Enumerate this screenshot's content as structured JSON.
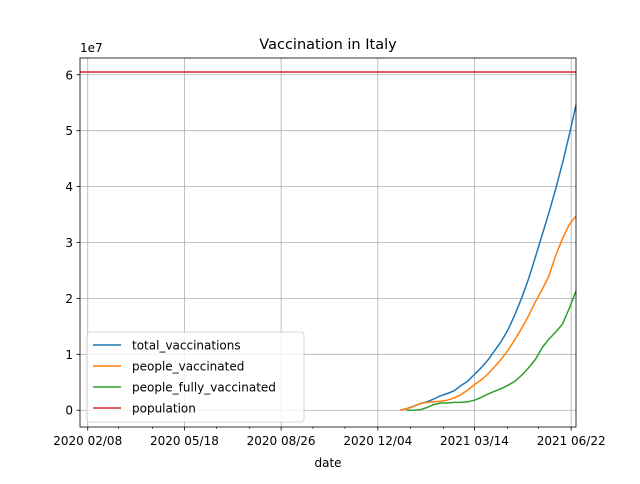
{
  "chart_data": {
    "type": "line",
    "title": "Vaccination in Italy",
    "xlabel": "date",
    "ylabel": "",
    "y_offset_label": "1e7",
    "y_multiplier": 10000000,
    "xlim": [
      "2020-01-31",
      "2021-06-27"
    ],
    "ylim": [
      -0.3,
      6.3
    ],
    "x_ticks": [
      {
        "date": "2020-02-08",
        "label": "2020 02/08"
      },
      {
        "date": "2020-05-18",
        "label": "2020 05/18"
      },
      {
        "date": "2020-08-26",
        "label": "2020 08/26"
      },
      {
        "date": "2020-12-04",
        "label": "2020 12/04"
      },
      {
        "date": "2021-03-14",
        "label": "2021 03/14"
      },
      {
        "date": "2021-06-22",
        "label": "2021 06/22"
      }
    ],
    "x_minor_ticks": [
      "2020-03-11",
      "2020-04-15",
      "2020-06-20",
      "2020-07-24",
      "2020-09-28",
      "2020-10-31",
      "2021-01-07",
      "2021-02-10",
      "2021-04-17",
      "2021-05-19"
    ],
    "y_ticks": [
      0,
      1,
      2,
      3,
      4,
      5,
      6
    ],
    "y_tick_labels": [
      "0",
      "1",
      "2",
      "3",
      "4",
      "5",
      "6"
    ],
    "grid": true,
    "legend_position": "lower-left",
    "series": [
      {
        "name": "total_vaccinations",
        "color": "#1f77b4",
        "x": [
          "2020-12-27",
          "2021-01-03",
          "2021-01-10",
          "2021-01-17",
          "2021-01-24",
          "2021-01-31",
          "2021-02-07",
          "2021-02-14",
          "2021-02-21",
          "2021-02-28",
          "2021-03-07",
          "2021-03-14",
          "2021-03-21",
          "2021-03-28",
          "2021-04-04",
          "2021-04-11",
          "2021-04-18",
          "2021-04-25",
          "2021-05-02",
          "2021-05-09",
          "2021-05-16",
          "2021-05-23",
          "2021-05-30",
          "2021-06-06",
          "2021-06-13",
          "2021-06-20",
          "2021-06-27"
        ],
        "values": [
          0.0,
          0.03,
          0.07,
          0.12,
          0.15,
          0.2,
          0.26,
          0.3,
          0.35,
          0.44,
          0.52,
          0.64,
          0.76,
          0.9,
          1.07,
          1.24,
          1.45,
          1.72,
          2.02,
          2.35,
          2.74,
          3.14,
          3.53,
          3.96,
          4.42,
          4.92,
          5.46
        ]
      },
      {
        "name": "people_vaccinated",
        "color": "#ff7f0e",
        "x": [
          "2020-12-27",
          "2021-01-03",
          "2021-01-10",
          "2021-01-17",
          "2021-01-24",
          "2021-01-31",
          "2021-02-07",
          "2021-02-14",
          "2021-02-21",
          "2021-02-28",
          "2021-03-07",
          "2021-03-14",
          "2021-03-21",
          "2021-03-28",
          "2021-04-04",
          "2021-04-11",
          "2021-04-18",
          "2021-04-25",
          "2021-05-02",
          "2021-05-09",
          "2021-05-16",
          "2021-05-23",
          "2021-05-30",
          "2021-06-06",
          "2021-06-13",
          "2021-06-20",
          "2021-06-27"
        ],
        "values": [
          0.0,
          0.03,
          0.07,
          0.12,
          0.14,
          0.15,
          0.16,
          0.18,
          0.22,
          0.28,
          0.36,
          0.46,
          0.54,
          0.65,
          0.78,
          0.92,
          1.08,
          1.27,
          1.47,
          1.69,
          1.94,
          2.16,
          2.4,
          2.77,
          3.07,
          3.32,
          3.47
        ]
      },
      {
        "name": "people_fully_vaccinated",
        "color": "#2ca02c",
        "x": [
          "2021-01-03",
          "2021-01-10",
          "2021-01-17",
          "2021-01-24",
          "2021-01-31",
          "2021-02-07",
          "2021-02-14",
          "2021-02-21",
          "2021-02-28",
          "2021-03-07",
          "2021-03-14",
          "2021-03-21",
          "2021-03-28",
          "2021-04-04",
          "2021-04-11",
          "2021-04-18",
          "2021-04-25",
          "2021-05-02",
          "2021-05-09",
          "2021-05-16",
          "2021-05-23",
          "2021-05-30",
          "2021-06-06",
          "2021-06-13",
          "2021-06-20",
          "2021-06-27"
        ],
        "values": [
          0.0,
          0.0,
          0.01,
          0.05,
          0.1,
          0.13,
          0.13,
          0.14,
          0.14,
          0.15,
          0.18,
          0.23,
          0.29,
          0.34,
          0.39,
          0.45,
          0.52,
          0.63,
          0.76,
          0.91,
          1.12,
          1.27,
          1.4,
          1.54,
          1.82,
          2.13
        ]
      },
      {
        "name": "population",
        "color": "#d62728",
        "x": [
          "2020-01-31",
          "2021-06-27"
        ],
        "values": [
          6.05,
          6.05
        ]
      }
    ]
  }
}
